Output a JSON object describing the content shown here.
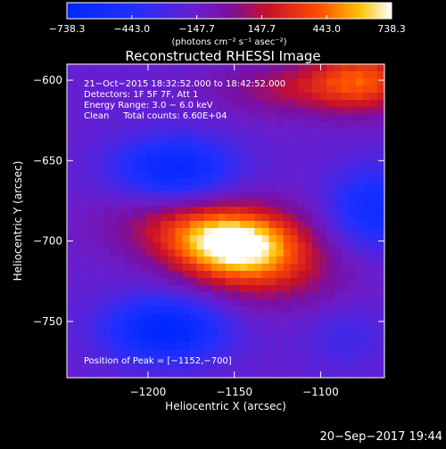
{
  "chart_data": {
    "type": "heatmap",
    "title": "Reconstructed RHESSI Image",
    "xlabel": "Heliocentric X (arcsec)",
    "ylabel": "Heliocentric Y (arcsec)",
    "xlim": [
      -1247,
      -1063
    ],
    "ylim": [
      -785,
      -590
    ],
    "x_ticks": [
      -1200,
      -1150,
      -1100
    ],
    "x_tick_labels": [
      "−1200",
      "−1150",
      "−1100"
    ],
    "y_ticks": [
      -600,
      -650,
      -700,
      -750
    ],
    "y_tick_labels": [
      "−600",
      "−650",
      "−700",
      "−750"
    ],
    "colorbar": {
      "min": -738.3,
      "max": 738.3,
      "ticks": [
        -738.3,
        -443.0,
        -147.7,
        147.7,
        443.0,
        738.3
      ],
      "tick_labels": [
        "−738.3",
        "−443.0",
        "−147.7",
        "147.7",
        "443.0",
        "738.3"
      ],
      "unit_label": "(photons cm⁻² s⁻¹ asec⁻²)"
    },
    "annotations": [
      "21−Oct−2015 18:32:52.000 to 18:42:52.000",
      "Detectors: 1F 5F 7F, Att 1",
      "Energy Range: 3.0 − 6.0 keV",
      "Clean     Total counts: 6.60E+04"
    ],
    "peak_label": "Position of Peak = [−1152,−700]",
    "peak": [
      -1152,
      -700
    ],
    "features": [
      {
        "x": -1150,
        "y": -703,
        "value": 738,
        "sx": 26,
        "sy": 14
      },
      {
        "x": -1170,
        "y": -690,
        "value": 330,
        "sx": 38,
        "sy": 14
      },
      {
        "x": -1130,
        "y": -720,
        "value": 300,
        "sx": 32,
        "sy": 16
      },
      {
        "x": -1075,
        "y": -600,
        "value": 520,
        "sx": 22,
        "sy": 14
      },
      {
        "x": -1120,
        "y": -605,
        "value": 260,
        "sx": 30,
        "sy": 12
      },
      {
        "x": -1185,
        "y": -655,
        "value": -520,
        "sx": 24,
        "sy": 14
      },
      {
        "x": -1190,
        "y": -755,
        "value": -600,
        "sx": 24,
        "sy": 14
      },
      {
        "x": -1070,
        "y": -680,
        "value": -420,
        "sx": 18,
        "sy": 18
      },
      {
        "x": -1085,
        "y": -760,
        "value": -150,
        "sx": 16,
        "sy": 14
      }
    ],
    "background_value": -170
  },
  "footer": {
    "timestamp": "20−Sep−2017 19:44"
  }
}
